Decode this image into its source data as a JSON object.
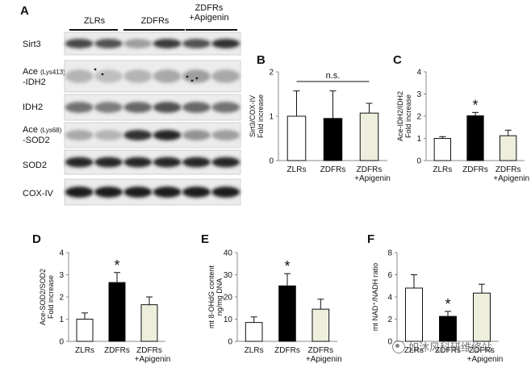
{
  "panels": {
    "A": "A",
    "B": "B",
    "C": "C",
    "D": "D",
    "E": "E",
    "F": "F"
  },
  "blot": {
    "groups": [
      {
        "label": "ZLRs"
      },
      {
        "label": "ZDFRs"
      },
      {
        "label": "ZDFRs\n+Apigenin"
      }
    ],
    "rows": [
      {
        "label_html": "Sirt3"
      },
      {
        "label_html": "Ace <small>(Lys413)</small><br>-IDH2"
      },
      {
        "label_html": "IDH2"
      },
      {
        "label_html": "Ace <small>(Lys68)</small><br>-SOD2"
      },
      {
        "label_html": "SOD2"
      },
      {
        "label_html": "COX-IV"
      }
    ],
    "band_intensity": [
      [
        0.75,
        0.7,
        0.35,
        0.8,
        0.7,
        0.85
      ],
      [
        0.25,
        0.2,
        0.25,
        0.3,
        0.35,
        0.3
      ],
      [
        0.55,
        0.5,
        0.6,
        0.7,
        0.6,
        0.55
      ],
      [
        0.3,
        0.25,
        0.85,
        0.9,
        0.4,
        0.35
      ],
      [
        0.9,
        0.9,
        0.9,
        0.9,
        0.9,
        0.9
      ],
      [
        0.95,
        0.95,
        0.95,
        0.95,
        0.95,
        0.95
      ]
    ]
  },
  "chart_data": [
    {
      "id": "B",
      "type": "bar",
      "categories": [
        "ZLRs",
        "ZDFRs",
        "ZDFRs\n+Apigenin"
      ],
      "values": [
        1.0,
        0.95,
        1.07
      ],
      "errors": [
        0.57,
        0.62,
        0.22
      ],
      "fills": [
        "#ffffff",
        "#000000",
        "#eeeedd"
      ],
      "ylabel": "Sirt3/COX-IV\nFold increase",
      "ylim": [
        0,
        2
      ],
      "yticks": [
        0,
        1,
        2
      ],
      "annotation": "n.s.",
      "sig": [
        false,
        false,
        false
      ]
    },
    {
      "id": "C",
      "type": "bar",
      "categories": [
        "ZLRs",
        "ZDFRs",
        "ZDFRs\n+Apigenin"
      ],
      "values": [
        1.0,
        2.02,
        1.12
      ],
      "errors": [
        0.08,
        0.15,
        0.25
      ],
      "fills": [
        "#ffffff",
        "#000000",
        "#eeeedd"
      ],
      "ylabel": "Ace-IDH2/IDH2\nFold increase",
      "ylim": [
        0,
        4
      ],
      "yticks": [
        0,
        1,
        2,
        3,
        4
      ],
      "annotation": "",
      "sig": [
        false,
        true,
        false
      ],
      "sig_mark": "*"
    },
    {
      "id": "D",
      "type": "bar",
      "categories": [
        "ZLRs",
        "ZDFRs",
        "ZDFRs\n+Apigenin"
      ],
      "values": [
        1.0,
        2.65,
        1.65
      ],
      "errors": [
        0.28,
        0.45,
        0.35
      ],
      "fills": [
        "#ffffff",
        "#000000",
        "#eeeedd"
      ],
      "ylabel": "Ace-SOD2/SOD2\nFold increase",
      "ylim": [
        0,
        4
      ],
      "yticks": [
        0,
        1,
        2,
        3,
        4
      ],
      "annotation": "",
      "sig": [
        false,
        true,
        false
      ],
      "sig_mark": "*"
    },
    {
      "id": "E",
      "type": "bar",
      "categories": [
        "ZLRs",
        "ZDFRs",
        "ZDFRs\n+Apigenin"
      ],
      "values": [
        8.5,
        25.0,
        14.5
      ],
      "errors": [
        2.5,
        5.5,
        4.5
      ],
      "fills": [
        "#ffffff",
        "#000000",
        "#eeeedd"
      ],
      "ylabel": "mt 8-OHdG content\nng/mg DNA",
      "ylim": [
        0,
        40
      ],
      "yticks": [
        0,
        10,
        20,
        30,
        40
      ],
      "annotation": "",
      "sig": [
        false,
        true,
        false
      ],
      "sig_mark": "*"
    },
    {
      "id": "F",
      "type": "bar",
      "categories": [
        "ZLRs",
        "ZDFRs",
        "ZDFRs\n+Apigenin"
      ],
      "values": [
        4.8,
        2.25,
        4.35
      ],
      "errors": [
        1.2,
        0.45,
        0.8
      ],
      "fills": [
        "#ffffff",
        "#000000",
        "#eeeedd"
      ],
      "ylabel": "mt NAD⁺/NADH ratio",
      "ylim": [
        0,
        8
      ],
      "yticks": [
        0,
        2,
        4,
        6,
        8
      ],
      "annotation": "",
      "sig": [
        false,
        true,
        false
      ],
      "sig_mark": "*"
    }
  ],
  "watermark": "如沐风科研维修站"
}
